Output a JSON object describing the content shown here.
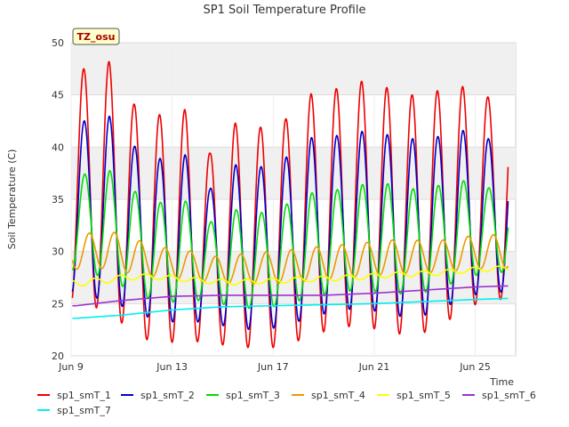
{
  "chart_data": {
    "type": "line",
    "title": "SP1 Soil Temperature Profile",
    "xlabel": "Time",
    "ylabel": "Soil Temperature (C)",
    "site_badge": "TZ_osu",
    "xlim": [
      9,
      26.6
    ],
    "ylim": [
      20,
      50
    ],
    "x_ticks": [
      9,
      13,
      17,
      21,
      25
    ],
    "x_tick_labels": [
      "Jun 9",
      "Jun 13",
      "Jun 17",
      "Jun 21",
      "Jun 25"
    ],
    "y_ticks": [
      20,
      25,
      30,
      35,
      40,
      45,
      50
    ],
    "y_tick_labels": [
      "20",
      "25",
      "30",
      "35",
      "40",
      "45",
      "50"
    ],
    "grid": true,
    "legend_position": "bottom",
    "series": [
      {
        "name": "sp1_smT_1",
        "color": "#ee0000",
        "width": 1.6,
        "phase": 0.0,
        "peak_days": [
          9.5,
          10.5,
          11.5,
          12.5,
          13.5,
          14.5,
          15.5,
          16.5,
          17.5,
          18.5,
          19.5,
          20.5,
          21.5,
          22.5,
          23.5,
          24.5,
          25.5
        ],
        "peaks": [
          47.5,
          48.2,
          44.1,
          43.1,
          43.6,
          39.4,
          42.3,
          41.9,
          42.7,
          45.1,
          45.6,
          46.3,
          45.7,
          45.0,
          45.4,
          45.8,
          44.8
        ],
        "troughs": [
          25.0,
          24.2,
          22.1,
          21.0,
          21.6,
          21.1,
          21.0,
          20.6,
          21.0,
          21.9,
          22.7,
          22.9,
          22.3,
          21.9,
          22.6,
          24.4,
          25.4
        ]
      },
      {
        "name": "sp1_smT_2",
        "color": "#0000cc",
        "width": 1.6,
        "phase": 0.02,
        "peak_days": [
          9.5,
          10.5,
          11.5,
          12.5,
          13.5,
          14.5,
          15.5,
          16.5,
          17.5,
          18.5,
          19.5,
          20.5,
          21.5,
          22.5,
          23.5,
          24.5,
          25.5
        ],
        "peaks": [
          42.5,
          43.0,
          40.1,
          38.9,
          39.3,
          36.0,
          38.3,
          38.1,
          39.0,
          40.9,
          41.1,
          41.5,
          41.2,
          40.8,
          41.0,
          41.6,
          40.8
        ],
        "troughs": [
          26.0,
          25.1,
          24.4,
          23.1,
          23.4,
          23.1,
          22.7,
          22.4,
          22.9,
          23.7,
          24.3,
          24.6,
          24.0,
          23.6,
          24.2,
          25.6,
          26.1
        ]
      },
      {
        "name": "sp1_smT_3",
        "color": "#00dd00",
        "width": 1.6,
        "phase": 0.04,
        "peak_days": [
          9.5,
          10.5,
          11.5,
          12.5,
          13.5,
          14.5,
          15.5,
          16.5,
          17.5,
          18.5,
          19.5,
          20.5,
          21.5,
          22.5,
          23.5,
          24.5,
          25.5
        ],
        "peaks": [
          37.4,
          37.8,
          35.8,
          34.7,
          34.9,
          32.8,
          34.0,
          33.7,
          34.5,
          35.6,
          35.9,
          36.4,
          36.5,
          36.0,
          36.3,
          36.8,
          36.1
        ],
        "troughs": [
          28.2,
          27.3,
          26.1,
          25.0,
          25.3,
          25.3,
          24.6,
          24.5,
          24.9,
          25.6,
          26.1,
          26.3,
          26.0,
          25.9,
          26.3,
          27.4,
          28.0
        ]
      },
      {
        "name": "sp1_smT_4",
        "color": "#ee9900",
        "width": 1.6,
        "phase": 0.22,
        "peak_days": [
          9.5,
          10.5,
          11.5,
          12.5,
          13.5,
          14.5,
          15.5,
          16.5,
          17.5,
          18.5,
          19.5,
          20.5,
          21.5,
          22.5,
          23.5,
          24.5,
          25.5
        ],
        "peaks": [
          31.7,
          32.0,
          31.2,
          30.4,
          30.2,
          29.5,
          29.7,
          29.9,
          30.1,
          30.4,
          30.6,
          30.8,
          31.1,
          31.1,
          31.0,
          31.4,
          31.6
        ],
        "troughs": [
          28.3,
          28.4,
          27.8,
          27.5,
          27.3,
          27.0,
          26.9,
          26.9,
          27.0,
          27.2,
          27.4,
          27.6,
          27.8,
          27.9,
          28.0,
          28.2,
          28.4
        ]
      },
      {
        "name": "sp1_smT_5",
        "color": "#ffff00",
        "width": 1.6,
        "phase": 0.45,
        "peak_days": [
          9.5,
          10.5,
          11.5,
          12.5,
          13.5,
          14.5,
          15.5,
          16.5,
          17.5,
          18.5,
          19.5,
          20.5,
          21.5,
          22.5,
          23.5,
          24.5,
          25.5
        ],
        "peaks": [
          27.3,
          27.6,
          27.9,
          27.8,
          27.6,
          27.4,
          27.3,
          27.4,
          27.5,
          27.6,
          27.7,
          27.8,
          28.0,
          28.1,
          28.2,
          28.4,
          28.6
        ],
        "troughs": [
          26.7,
          27.0,
          27.3,
          27.3,
          27.1,
          26.9,
          26.8,
          26.9,
          27.0,
          27.1,
          27.2,
          27.3,
          27.5,
          27.6,
          27.7,
          27.9,
          28.1
        ]
      },
      {
        "name": "sp1_smT_6",
        "color": "#9933cc",
        "width": 1.6,
        "phase": 0.0,
        "peak_days": [
          9.2,
          11.0,
          13.0,
          15.0,
          17.0,
          19.0,
          21.0,
          23.0,
          25.0,
          26.3
        ],
        "peaks": [
          24.8,
          25.3,
          25.7,
          25.8,
          25.8,
          25.8,
          26.0,
          26.3,
          26.6,
          26.7
        ],
        "troughs": [
          24.8,
          25.3,
          25.7,
          25.8,
          25.8,
          25.8,
          26.0,
          26.3,
          26.6,
          26.7
        ]
      },
      {
        "name": "sp1_smT_7",
        "color": "#00eeee",
        "width": 1.6,
        "phase": 0.0,
        "peak_days": [
          9.2,
          11.0,
          13.0,
          15.0,
          17.0,
          19.0,
          21.0,
          23.0,
          25.0,
          26.3
        ],
        "peaks": [
          23.6,
          23.9,
          24.4,
          24.7,
          24.8,
          24.9,
          25.0,
          25.2,
          25.4,
          25.5
        ],
        "troughs": [
          23.6,
          23.9,
          24.4,
          24.7,
          24.8,
          24.9,
          25.0,
          25.2,
          25.4,
          25.5
        ]
      }
    ]
  }
}
